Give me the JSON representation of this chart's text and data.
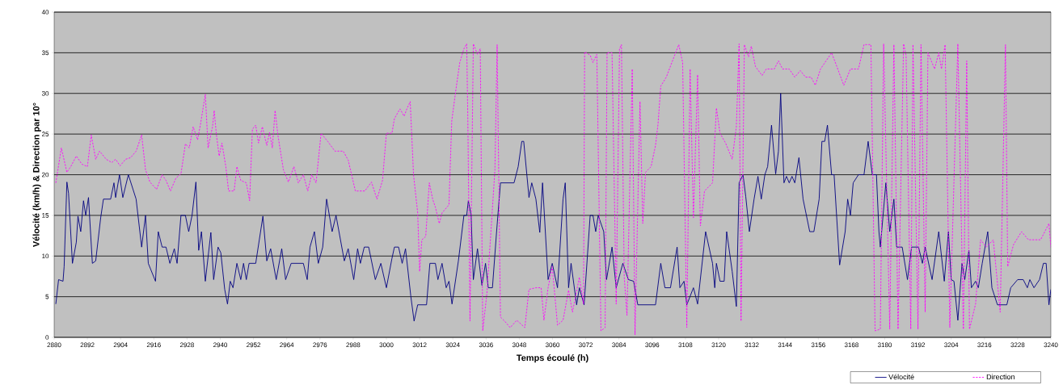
{
  "chart_data": {
    "type": "line",
    "xlabel": "Temps écoulé (h)",
    "ylabel": "Vélocité (km/h) & Direction par 10°",
    "xlim": [
      2880,
      3240
    ],
    "xticks": [
      2880,
      2892,
      2904,
      2916,
      2928,
      2940,
      2952,
      2964,
      2976,
      2988,
      3000,
      3012,
      3024,
      3036,
      3048,
      3060,
      3072,
      3084,
      3096,
      3108,
      3120,
      3132,
      3144,
      3156,
      3168,
      3180,
      3192,
      3204,
      3216,
      3228,
      3240
    ],
    "ylim": [
      0,
      40
    ],
    "yticks": [
      0,
      5,
      10,
      15,
      20,
      25,
      30,
      35,
      40
    ],
    "grid": "y",
    "legend": "bottom right",
    "marker": "none",
    "series": [
      {
        "name": "Vélocité",
        "color": "#000080",
        "line_style": "solid",
        "x": [
          2880.6,
          2881.6,
          2883.2,
          2883.6,
          2884.6,
          2885.2,
          2886.6,
          2888.0,
          2888.6,
          2889.6,
          2890.6,
          2891.4,
          2892.4,
          2893.8,
          2895.0,
          2896.8,
          2897.8,
          2900.4,
          2901.6,
          2902.2,
          2903.6,
          2904.8,
          2906.8,
          2909.6,
          2911.6,
          2913.0,
          2914.0,
          2916.6,
          2917.6,
          2919.0,
          2920.4,
          2921.8,
          2923.4,
          2924.4,
          2925.8,
          2927.4,
          2928.6,
          2929.8,
          2931.2,
          2932.2,
          2933.2,
          2934.6,
          2936.6,
          2937.6,
          2939.2,
          2940.2,
          2941.6,
          2942.6,
          2943.6,
          2944.6,
          2946.0,
          2947.4,
          2948.4,
          2949.4,
          2950.4,
          2952.8,
          2955.4,
          2956.8,
          2958.2,
          2960.2,
          2962.2,
          2963.6,
          2965.6,
          2970.0,
          2971.4,
          2972.4,
          2974.0,
          2975.4,
          2977.0,
          2978.4,
          2980.4,
          2981.8,
          2984.8,
          2986.2,
          2988.2,
          2989.6,
          2990.6,
          2992.0,
          2993.6,
          2996.0,
          2998.0,
          3000.0,
          3002.0,
          3002.9,
          3004.4,
          3005.7,
          3006.9,
          3008.8,
          3010.0,
          3011.3,
          3014.5,
          3015.7,
          3017.7,
          3018.6,
          3020.1,
          3021.6,
          3022.6,
          3023.7,
          3026.0,
          3028.0,
          3029.0,
          3029.6,
          3030.6,
          3031.4,
          3032.9,
          3034.5,
          3035.8,
          3036.8,
          3038.3,
          3039.8,
          3041.2,
          3046.1,
          3047.6,
          3048.9,
          3049.6,
          3051.5,
          3052.5,
          3054.0,
          3055.4,
          3056.4,
          3058.4,
          3059.9,
          3061.8,
          3063.8,
          3064.6,
          3065.8,
          3066.7,
          3068.7,
          3069.7,
          3071.4,
          3073.6,
          3074.6,
          3075.6,
          3076.5,
          3078.5,
          3079.5,
          3081.5,
          3083.0,
          3085.4,
          3087.4,
          3089.3,
          3090.8,
          3097.2,
          3099.1,
          3100.6,
          3102.6,
          3105.0,
          3106.0,
          3107.5,
          3108.5,
          3110.9,
          3112.4,
          3115.3,
          3117.8,
          3118.6,
          3119.2,
          3120.5,
          3122.0,
          3122.9,
          3124.9,
          3126.4,
          3127.4,
          3128.8,
          3129.8,
          3131.1,
          3132.8,
          3134.2,
          3135.4,
          3136.7,
          3137.7,
          3139.1,
          3140.6,
          3141.6,
          3142.4,
          3143.6,
          3144.5,
          3145.5,
          3146.5,
          3147.5,
          3149.0,
          3150.5,
          3152.9,
          3154.4,
          3156.3,
          3157.3,
          3158.3,
          3159.3,
          3160.8,
          3161.7,
          3163.7,
          3165.7,
          3166.6,
          3167.6,
          3168.6,
          3170.5,
          3172.5,
          3174.0,
          3175.5,
          3177.0,
          3177.9,
          3178.4,
          3180.4,
          3181.8,
          3183.3,
          3184.3,
          3186.3,
          3188.2,
          3189.7,
          3192.2,
          3193.6,
          3194.6,
          3197.1,
          3199.5,
          3201.5,
          3203.0,
          3204.0,
          3205.0,
          3206.4,
          3207.9,
          3208.9,
          3210.4,
          3211.3,
          3212.8,
          3213.8,
          3215.2,
          3217.2,
          3218.7,
          3220.7,
          3224.1,
          3225.5,
          3228.0,
          3230.0,
          3231.5,
          3232.4,
          3233.9,
          3235.9,
          3237.3,
          3238.3,
          3239.3,
          3240.0
        ],
        "values": [
          4.1,
          7.1,
          6.9,
          8.7,
          19.1,
          17.7,
          9.1,
          11.7,
          14.9,
          13.0,
          16.8,
          15.0,
          17.2,
          9.1,
          9.4,
          14.7,
          17.0,
          17.0,
          19.0,
          17.2,
          20.0,
          17.2,
          20.0,
          17.0,
          11.1,
          15.0,
          9.1,
          6.9,
          13.0,
          11.1,
          11.1,
          9.1,
          10.9,
          9.1,
          15.0,
          15.0,
          13.0,
          15.0,
          19.1,
          10.7,
          13.0,
          6.9,
          12.9,
          7.1,
          11.1,
          10.4,
          5.9,
          4.1,
          6.9,
          6.1,
          9.1,
          7.1,
          9.1,
          7.1,
          9.1,
          9.1,
          14.9,
          9.4,
          10.9,
          7.1,
          10.9,
          7.1,
          9.1,
          9.1,
          7.1,
          11.1,
          13.0,
          9.1,
          11.1,
          17.0,
          13.0,
          15.0,
          9.4,
          10.9,
          7.1,
          10.9,
          9.1,
          11.1,
          11.1,
          7.1,
          9.1,
          6.1,
          9.7,
          11.1,
          11.1,
          9.1,
          10.9,
          5.1,
          2.0,
          4.0,
          4.0,
          9.1,
          9.1,
          7.1,
          9.1,
          6.1,
          6.9,
          4.1,
          9.4,
          15.0,
          15.0,
          16.8,
          15.0,
          7.1,
          10.9,
          6.4,
          9.1,
          6.1,
          6.1,
          13.0,
          19.0,
          19.0,
          21.0,
          24.1,
          24.1,
          17.2,
          19.0,
          17.0,
          12.9,
          19.0,
          7.1,
          9.1,
          6.1,
          17.0,
          19.0,
          6.1,
          9.1,
          4.0,
          6.1,
          4.0,
          15.0,
          15.0,
          13.0,
          15.0,
          13.0,
          7.1,
          11.1,
          6.1,
          9.1,
          7.1,
          6.9,
          4.0,
          4.0,
          9.1,
          6.1,
          6.1,
          11.1,
          6.1,
          6.9,
          4.0,
          6.1,
          4.1,
          13.0,
          9.1,
          6.1,
          9.1,
          6.9,
          6.9,
          13.0,
          8.1,
          3.8,
          19.0,
          20.0,
          17.3,
          13.0,
          17.0,
          19.8,
          17.0,
          20.0,
          21.0,
          26.1,
          20.1,
          22.9,
          30.0,
          19.0,
          19.8,
          19.0,
          19.8,
          19.0,
          22.1,
          17.0,
          13.0,
          13.0,
          17.0,
          24.1,
          24.1,
          26.1,
          20.0,
          20.0,
          8.9,
          13.0,
          17.0,
          15.0,
          19.0,
          20.0,
          20.0,
          24.1,
          20.0,
          20.0,
          13.0,
          11.1,
          19.0,
          13.0,
          17.0,
          11.1,
          11.1,
          7.1,
          11.1,
          11.1,
          9.1,
          11.1,
          7.1,
          13.0,
          6.9,
          13.0,
          7.1,
          6.9,
          2.1,
          9.1,
          7.1,
          10.7,
          6.1,
          6.9,
          6.1,
          9.1,
          13.0,
          6.1,
          4.0,
          4.0,
          6.1,
          7.1,
          7.1,
          6.1,
          7.1,
          6.1,
          7.1,
          9.1,
          9.1,
          4.0,
          5.9
        ]
      },
      {
        "name": "Direction",
        "color": "#ff00ff",
        "line_style": "dotted",
        "x": [
          2880.6,
          2882.6,
          2884.6,
          2886.0,
          2888.0,
          2890.0,
          2892.0,
          2893.4,
          2895.0,
          2896.4,
          2898.8,
          2900.8,
          2902.2,
          2903.8,
          2905.8,
          2907.6,
          2909.6,
          2911.6,
          2913.0,
          2914.6,
          2917.0,
          2919.0,
          2920.4,
          2922.0,
          2924.0,
          2925.8,
          2927.4,
          2928.8,
          2930.2,
          2931.8,
          2932.8,
          2934.6,
          2935.6,
          2937.2,
          2937.8,
          2938.6,
          2939.6,
          2940.6,
          2942.0,
          2943.0,
          2945.0,
          2946.0,
          2947.4,
          2949.4,
          2950.6,
          2951.6,
          2952.8,
          2953.8,
          2955.2,
          2956.8,
          2957.8,
          2958.8,
          2959.8,
          2960.8,
          2962.8,
          2964.6,
          2966.6,
          2968.2,
          2970.0,
          2971.6,
          2973.0,
          2974.6,
          2976.4,
          2978.8,
          2981.4,
          2984.4,
          2986.2,
          2988.8,
          2992.2,
          2994.6,
          2996.6,
          2998.6,
          3000.0,
          3002.0,
          3002.9,
          3004.9,
          3006.4,
          3007.4,
          3008.6,
          3009.8,
          3011.3,
          3012.0,
          3012.8,
          3014.2,
          3015.5,
          3016.7,
          3017.7,
          3019.1,
          3020.1,
          3022.6,
          3023.6,
          3025.0,
          3026.5,
          3028.0,
          3029.0,
          3029.4,
          3030.2,
          3031.4,
          3032.9,
          3033.9,
          3034.8,
          3036.3,
          3039.2,
          3040.0,
          3041.2,
          3042.7,
          3044.7,
          3047.1,
          3050.0,
          3051.5,
          3054.0,
          3055.9,
          3056.9,
          3058.4,
          3059.9,
          3061.8,
          3063.8,
          3065.8,
          3067.2,
          3069.7,
          3071.2,
          3071.6,
          3073.6,
          3074.6,
          3076.0,
          3077.5,
          3079.0,
          3079.7,
          3081.5,
          3083.0,
          3084.2,
          3084.9,
          3085.9,
          3086.9,
          3088.8,
          3089.8,
          3091.6,
          3092.6,
          3093.6,
          3095.6,
          3097.2,
          3098.1,
          3099.1,
          3101.1,
          3103.1,
          3105.6,
          3107.0,
          3108.5,
          3109.7,
          3110.9,
          3112.4,
          3113.4,
          3114.9,
          3117.8,
          3119.2,
          3120.5,
          3122.5,
          3124.9,
          3126.4,
          3127.4,
          3128.1,
          3129.3,
          3130.8,
          3131.8,
          3133.3,
          3135.7,
          3137.2,
          3140.1,
          3141.6,
          3143.1,
          3145.5,
          3147.5,
          3149.5,
          3151.4,
          3153.4,
          3154.9,
          3156.8,
          3158.8,
          3160.8,
          3162.7,
          3165.2,
          3167.6,
          3170.5,
          3172.5,
          3175.0,
          3176.5,
          3178.4,
          3179.6,
          3181.8,
          3183.3,
          3184.8,
          3186.8,
          3187.7,
          3189.4,
          3190.2,
          3192.0,
          3193.1,
          3194.6,
          3195.6,
          3198.0,
          3199.5,
          3200.5,
          3201.8,
          3203.5,
          3206.4,
          3208.4,
          3209.6,
          3210.6,
          3212.8,
          3214.6,
          3216.7,
          3219.2,
          3221.7,
          3223.6,
          3224.4,
          3226.5,
          3229.4,
          3231.9,
          3236.3,
          3239.3,
          3240.0
        ],
        "values": [
          19.0,
          23.3,
          20.3,
          21.0,
          22.3,
          21.3,
          21.0,
          24.9,
          21.9,
          22.9,
          21.9,
          21.5,
          21.9,
          21.1,
          21.9,
          22.1,
          22.9,
          24.9,
          20.6,
          19.1,
          18.2,
          20.0,
          19.3,
          18.0,
          19.6,
          20.1,
          23.8,
          23.3,
          25.9,
          24.3,
          26.1,
          29.9,
          23.3,
          25.9,
          27.9,
          24.9,
          22.3,
          23.9,
          21.0,
          18.0,
          18.0,
          21.0,
          19.3,
          19.0,
          16.8,
          25.6,
          26.1,
          23.9,
          25.9,
          23.6,
          25.2,
          23.3,
          27.9,
          24.9,
          20.6,
          19.1,
          21.0,
          19.0,
          20.0,
          18.0,
          20.0,
          19.0,
          25.1,
          24.1,
          22.9,
          22.9,
          21.8,
          18.0,
          18.0,
          19.1,
          17.0,
          19.3,
          25.1,
          25.1,
          26.9,
          28.1,
          27.2,
          28.1,
          29.0,
          20.0,
          15.3,
          8.1,
          12.0,
          12.4,
          19.0,
          17.0,
          16.0,
          14.0,
          15.3,
          16.3,
          26.6,
          30.2,
          33.8,
          35.5,
          36.1,
          27.2,
          2.0,
          36.1,
          34.8,
          35.5,
          0.8,
          5.4,
          20.6,
          36.0,
          2.5,
          2.0,
          1.2,
          2.1,
          1.2,
          5.9,
          6.1,
          6.1,
          2.1,
          6.1,
          8.7,
          1.5,
          2.1,
          5.8,
          3.1,
          7.4,
          4.1,
          35.1,
          34.7,
          33.8,
          34.8,
          0.8,
          1.2,
          35.0,
          35.0,
          4.1,
          35.5,
          36.0,
          7.4,
          2.7,
          33.0,
          0.3,
          29.0,
          14.0,
          20.3,
          21.0,
          23.6,
          26.2,
          30.9,
          32.0,
          33.8,
          36.0,
          33.8,
          1.2,
          33.0,
          14.7,
          32.3,
          13.7,
          18.0,
          19.0,
          28.2,
          25.1,
          23.9,
          21.9,
          25.9,
          36.1,
          2.0,
          36.0,
          34.5,
          35.8,
          33.3,
          32.2,
          33.0,
          33.0,
          34.0,
          33.0,
          33.0,
          32.0,
          32.8,
          32.0,
          32.0,
          31.0,
          33.0,
          34.0,
          35.0,
          33.3,
          31.0,
          33.0,
          33.0,
          36.0,
          36.0,
          0.8,
          1.0,
          36.1,
          1.0,
          36.0,
          1.0,
          36.1,
          34.7,
          1.0,
          36.0,
          1.0,
          36.0,
          3.1,
          35.0,
          33.0,
          35.0,
          33.0,
          36.0,
          1.2,
          36.1,
          1.0,
          34.0,
          1.0,
          4.1,
          12.0,
          11.1,
          12.0,
          3.1,
          36.0,
          8.7,
          11.4,
          13.0,
          12.0,
          12.0,
          14.0,
          11.1
        ]
      }
    ]
  }
}
